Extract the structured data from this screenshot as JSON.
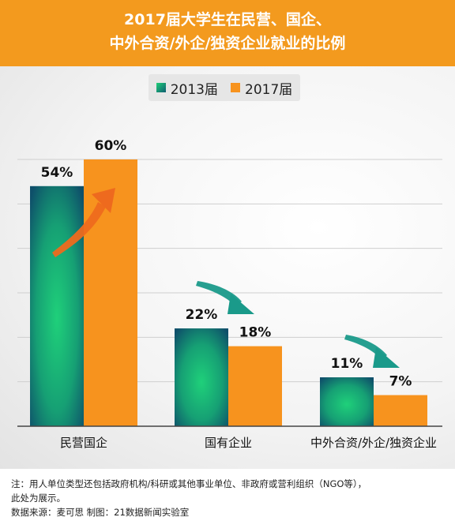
{
  "title_line1": "2017届大学生在民营、国企、",
  "title_line2": "中外合资/外企/独资企业就业的比例",
  "colors": {
    "header_bg": "#f39a1e",
    "series_2013_light": "#1fcf78",
    "series_2013_dark": "#0f5d70",
    "series_2017": "#f7931e",
    "arrow_up": "#ee6a1e",
    "arrow_down": "#1a9a8a"
  },
  "chart_data": {
    "type": "bar",
    "title": "2017届大学生在民营、国企、中外合资/外企/独资企业就业的比例",
    "categories": [
      "民营国企",
      "国有企业",
      "中外合资/外企/独资企业"
    ],
    "series": [
      {
        "name": "2013届",
        "values": [
          54,
          22,
          11
        ],
        "labels": [
          "54%",
          "22%",
          "11%"
        ]
      },
      {
        "name": "2017届",
        "values": [
          60,
          18,
          7
        ],
        "labels": [
          "60%",
          "18%",
          "7%"
        ]
      }
    ],
    "ylim": [
      0,
      60
    ],
    "grid": true,
    "legend_position": "top-center",
    "annotations": [
      "arrow-up-category-1",
      "arrow-down-category-2",
      "arrow-down-category-3"
    ]
  },
  "footer": {
    "note": "注：用人单位类型还包括政府机构/科研或其他事业单位、非政府或营利组织（NGO等），",
    "note2": "此处为展示。",
    "source": "数据来源：麦可思    制图：21数据新闻实验室"
  }
}
